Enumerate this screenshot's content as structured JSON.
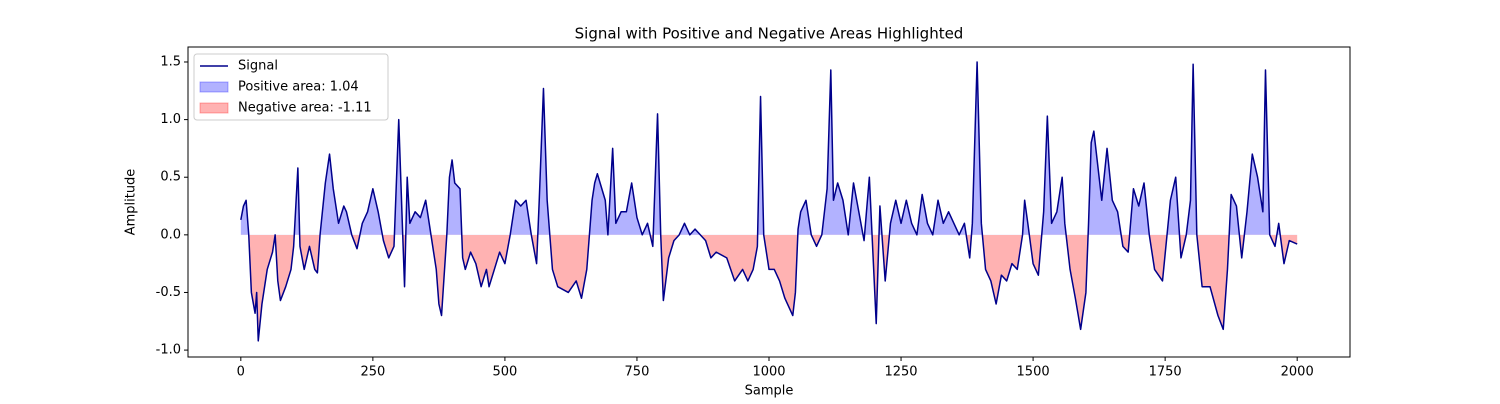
{
  "chart_data": {
    "type": "line",
    "title": "Signal with Positive and Negative Areas Highlighted",
    "x_label": "Sample",
    "y_label": "Amplitude",
    "xlim": [
      -100,
      2100
    ],
    "ylim": [
      -1.06,
      1.63
    ],
    "xticks": [
      0,
      250,
      500,
      750,
      1000,
      1250,
      1500,
      1750,
      2000
    ],
    "yticks": [
      {
        "value": -1,
        "label": "-1.0"
      },
      {
        "value": -0.5,
        "label": "-0.5"
      },
      {
        "value": 0,
        "label": "0.0"
      },
      0.5,
      {
        "value": 1,
        "label": "1.0"
      },
      1.5
    ],
    "legend": "upper left",
    "x": [
      0,
      5,
      10,
      15,
      20,
      27,
      30,
      33,
      40,
      50,
      60,
      65,
      70,
      75,
      85,
      95,
      100,
      108,
      112,
      120,
      130,
      140,
      145,
      150,
      160,
      168,
      175,
      180,
      185,
      195,
      200,
      210,
      220,
      230,
      240,
      250,
      260,
      270,
      280,
      290,
      299,
      305,
      310,
      315,
      320,
      330,
      340,
      350,
      360,
      370,
      375,
      380,
      390,
      395,
      400,
      405,
      415,
      420,
      425,
      435,
      445,
      455,
      465,
      470,
      480,
      490,
      500,
      510,
      520,
      530,
      540,
      550,
      560,
      565,
      573,
      580,
      590,
      600,
      620,
      635,
      645,
      655,
      665,
      670,
      675,
      690,
      695,
      704,
      710,
      720,
      730,
      740,
      750,
      760,
      770,
      780,
      789,
      795,
      800,
      810,
      820,
      830,
      840,
      850,
      860,
      870,
      880,
      890,
      900,
      920,
      935,
      950,
      960,
      970,
      978,
      984,
      990,
      1000,
      1010,
      1020,
      1030,
      1045,
      1050,
      1055,
      1060,
      1070,
      1080,
      1090,
      1100,
      1110,
      1117,
      1122,
      1130,
      1140,
      1150,
      1160,
      1170,
      1180,
      1190,
      1203,
      1210,
      1220,
      1230,
      1240,
      1250,
      1260,
      1270,
      1280,
      1290,
      1300,
      1310,
      1320,
      1330,
      1340,
      1350,
      1360,
      1370,
      1380,
      1385,
      1394,
      1402,
      1410,
      1420,
      1430,
      1440,
      1450,
      1460,
      1470,
      1480,
      1484,
      1490,
      1500,
      1510,
      1520,
      1527,
      1535,
      1545,
      1555,
      1560,
      1570,
      1580,
      1590,
      1600,
      1605,
      1610,
      1615,
      1620,
      1630,
      1640,
      1650,
      1660,
      1670,
      1680,
      1690,
      1700,
      1710,
      1720,
      1730,
      1745,
      1760,
      1770,
      1780,
      1790,
      1798,
      1803,
      1810,
      1820,
      1835,
      1850,
      1860,
      1868,
      1875,
      1885,
      1895,
      1905,
      1915,
      1925,
      1935,
      1940,
      1948,
      1958,
      1965,
      1975,
      1985,
      2000
    ],
    "series": [
      {
        "name": "Signal",
        "color": "#00008b",
        "values": [
          0.13,
          0.25,
          0.3,
          0.0,
          -0.5,
          -0.68,
          -0.5,
          -0.92,
          -0.6,
          -0.3,
          -0.15,
          0.0,
          -0.4,
          -0.57,
          -0.45,
          -0.3,
          -0.1,
          0.58,
          -0.1,
          -0.3,
          -0.1,
          -0.3,
          -0.33,
          0.0,
          0.45,
          0.7,
          0.4,
          0.25,
          0.1,
          0.25,
          0.2,
          0.0,
          -0.12,
          0.1,
          0.2,
          0.4,
          0.2,
          -0.05,
          -0.2,
          -0.1,
          1.0,
          0.2,
          -0.45,
          0.5,
          0.1,
          0.2,
          0.15,
          0.3,
          0.0,
          -0.3,
          -0.6,
          -0.7,
          0.0,
          0.5,
          0.65,
          0.45,
          0.4,
          -0.2,
          -0.3,
          -0.15,
          -0.25,
          -0.45,
          -0.3,
          -0.45,
          -0.3,
          -0.15,
          -0.25,
          0.0,
          0.3,
          0.25,
          0.3,
          0.0,
          -0.25,
          0.3,
          1.27,
          0.3,
          -0.3,
          -0.45,
          -0.5,
          -0.4,
          -0.55,
          -0.3,
          0.3,
          0.45,
          0.53,
          0.3,
          0.0,
          0.75,
          0.1,
          0.2,
          0.2,
          0.45,
          0.15,
          0.0,
          0.1,
          -0.1,
          1.05,
          0.0,
          -0.57,
          -0.2,
          -0.05,
          0.0,
          0.1,
          0.0,
          0.05,
          0.0,
          -0.05,
          -0.2,
          -0.15,
          -0.2,
          -0.4,
          -0.3,
          -0.4,
          -0.3,
          -0.1,
          1.2,
          0.0,
          -0.3,
          -0.3,
          -0.4,
          -0.55,
          -0.7,
          -0.5,
          0.05,
          0.2,
          0.3,
          0.0,
          -0.1,
          0.0,
          0.4,
          1.43,
          0.3,
          0.45,
          0.3,
          0.0,
          0.45,
          0.2,
          -0.05,
          0.5,
          -0.77,
          0.25,
          -0.4,
          0.1,
          0.3,
          0.1,
          0.3,
          0.1,
          0.0,
          0.35,
          0.1,
          0.0,
          0.3,
          0.1,
          0.2,
          0.1,
          0.0,
          0.1,
          -0.2,
          0.1,
          1.5,
          0.1,
          -0.3,
          -0.4,
          -0.6,
          -0.35,
          -0.4,
          -0.25,
          -0.3,
          0.0,
          0.3,
          0.1,
          -0.25,
          -0.35,
          0.2,
          1.03,
          0.1,
          0.2,
          0.5,
          0.1,
          -0.3,
          -0.55,
          -0.82,
          -0.5,
          0.1,
          0.8,
          0.9,
          0.7,
          0.3,
          0.75,
          0.3,
          0.2,
          -0.1,
          -0.15,
          0.4,
          0.25,
          0.45,
          0.0,
          -0.3,
          -0.4,
          0.3,
          0.5,
          -0.2,
          0.0,
          0.3,
          1.48,
          0.0,
          -0.45,
          -0.45,
          -0.7,
          -0.82,
          -0.3,
          0.35,
          0.25,
          -0.2,
          0.2,
          0.7,
          0.5,
          0.2,
          1.43,
          0.0,
          -0.1,
          0.1,
          -0.25,
          -0.05,
          -0.08
        ]
      },
      {
        "name": "Positive area: 1.04",
        "color": "#0000ff"
      },
      {
        "name": "Negative area: -1.11",
        "color": "#ff0000"
      }
    ]
  }
}
